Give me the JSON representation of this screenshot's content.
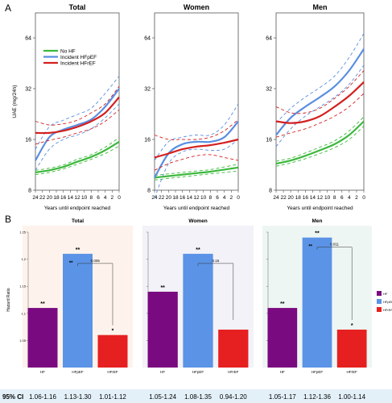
{
  "panel_a_letter": "A",
  "panel_b_letter": "B",
  "colors": {
    "no_hf": "#3cb83c",
    "hfpef": "#5a8ee0",
    "hfref": "#d42020",
    "hf_bar": "#7a0a80",
    "hfpef_bar": "#5b93e6",
    "hfref_bar": "#e62020",
    "bg_total": "#fdf3ec",
    "bg_women": "#f2f2f8",
    "bg_men": "#eef6f3",
    "ci_band": "#e3f0f8"
  },
  "ci_label": "95% CI",
  "chart_data": [
    {
      "type": "line",
      "title": "Total",
      "xlabel": "Years until endpoint reached",
      "ylabel": "UAE (mg/24h)",
      "y_scale": "log",
      "y_ticks": [
        8,
        16,
        32,
        64
      ],
      "ylim": [
        8,
        90
      ],
      "x_reversed": true,
      "x_ticks": [
        "24",
        "22",
        "20",
        "18",
        "16",
        "14",
        "12",
        "10",
        "8",
        "6",
        "4",
        "2",
        "0"
      ],
      "legend": {
        "position": "top-left",
        "entries": [
          "No HF",
          "Incident HFpEF",
          "Incident HFrEF"
        ]
      },
      "x": [
        24,
        20,
        16,
        12,
        8,
        4,
        0
      ],
      "series": [
        {
          "name": "No HF",
          "values": [
            10.2,
            10.5,
            11,
            11.8,
            12.6,
            13.8,
            15.5
          ],
          "lower": [
            9.9,
            10.2,
            10.7,
            11.4,
            12.2,
            13.2,
            14.6
          ],
          "upper": [
            10.5,
            10.8,
            11.3,
            12.2,
            13,
            14.4,
            16.4
          ]
        },
        {
          "name": "Incident HFpEF",
          "values": [
            12,
            16.5,
            18.3,
            19.5,
            21,
            25,
            32
          ],
          "lower": [
            10.5,
            14,
            16,
            17,
            18.5,
            21.5,
            26
          ],
          "upper": [
            14,
            19,
            20.8,
            22.5,
            24.5,
            30,
            38
          ]
        },
        {
          "name": "Incident HFrEF",
          "values": [
            17.5,
            17.5,
            18,
            19,
            20.5,
            23,
            28.5
          ],
          "lower": [
            15,
            15.8,
            16.5,
            17.5,
            18.5,
            20.5,
            24
          ],
          "upper": [
            20.5,
            19.5,
            19.8,
            20.8,
            23,
            26,
            33
          ]
        }
      ]
    },
    {
      "type": "line",
      "title": "Women",
      "xlabel": "Years until endpoint reached",
      "ylabel": "",
      "y_scale": "log",
      "y_ticks": [
        8,
        16,
        32,
        64
      ],
      "ylim": [
        8,
        90
      ],
      "x_reversed": true,
      "x_ticks": [
        "24",
        "22",
        "20",
        "18",
        "16",
        "14",
        "12",
        "10",
        "8",
        "6",
        "4",
        "2",
        "0"
      ],
      "x": [
        24,
        20,
        16,
        12,
        8,
        4,
        0
      ],
      "series": [
        {
          "name": "No HF",
          "values": [
            9.5,
            9.7,
            9.9,
            10.1,
            10.3,
            10.6,
            10.9
          ],
          "lower": [
            9.2,
            9.4,
            9.6,
            9.8,
            10,
            10.2,
            10.4
          ],
          "upper": [
            9.8,
            10,
            10.2,
            10.4,
            10.6,
            11,
            11.4
          ]
        },
        {
          "name": "Incident HFpEF",
          "values": [
            9.5,
            13.2,
            15,
            15.5,
            15.5,
            16.5,
            20.5
          ],
          "lower": [
            7.2,
            11.5,
            13.5,
            14,
            13.8,
            14,
            16
          ],
          "upper": [
            12,
            15.5,
            16.5,
            17,
            17,
            19.5,
            26
          ]
        },
        {
          "name": "Incident HFrEF",
          "values": [
            12.5,
            13.2,
            14,
            14.5,
            14.8,
            15.3,
            16
          ],
          "lower": [
            10.5,
            11.5,
            12.2,
            12.8,
            13,
            12.5,
            12
          ],
          "upper": [
            17,
            16,
            16,
            16,
            16.5,
            18,
            21
          ]
        }
      ]
    },
    {
      "type": "line",
      "title": "Men",
      "xlabel": "Years until endpoint reached",
      "ylabel": "",
      "y_scale": "log",
      "y_ticks": [
        8,
        16,
        32,
        64
      ],
      "ylim": [
        8,
        90
      ],
      "x_reversed": true,
      "x_ticks": [
        "24",
        "22",
        "20",
        "18",
        "16",
        "14",
        "12",
        "10",
        "8",
        "6",
        "4",
        "2",
        "0"
      ],
      "x": [
        24,
        20,
        16,
        12,
        8,
        4,
        0
      ],
      "series": [
        {
          "name": "No HF",
          "values": [
            11.5,
            12,
            12.8,
            13.8,
            15,
            17,
            20.5
          ],
          "lower": [
            11.1,
            11.6,
            12.3,
            13.2,
            14.3,
            16,
            19.2
          ],
          "upper": [
            11.9,
            12.4,
            13.3,
            14.4,
            15.7,
            18,
            21.8
          ]
        },
        {
          "name": "Incident HFpEF",
          "values": [
            17,
            21.5,
            25,
            28.5,
            33,
            41,
            55
          ],
          "lower": [
            14.5,
            18.5,
            22,
            25,
            28.5,
            34,
            44
          ],
          "upper": [
            20,
            24.5,
            28.5,
            32.5,
            38,
            49,
            68
          ]
        },
        {
          "name": "Incident HFrEF",
          "values": [
            20.5,
            20,
            20.5,
            22,
            25,
            29,
            35
          ],
          "lower": [
            16.5,
            17.5,
            18.5,
            20,
            22,
            25,
            30
          ],
          "upper": [
            25,
            23,
            23,
            24.5,
            28,
            33,
            41
          ]
        }
      ]
    },
    {
      "type": "bar",
      "title": "Total",
      "ylabel": "Hazard Ratio",
      "ylim": [
        1.0,
        1.25
      ],
      "y_ticks": [
        1.05,
        1.1,
        1.15,
        1.2,
        1.25
      ],
      "y_tick_labels": [
        "1.05",
        "1.1",
        "1.15",
        "1.2",
        "1.25"
      ],
      "categories": [
        "HF",
        "HFpEF",
        "HFrEF"
      ],
      "values": [
        1.11,
        1.21,
        1.06
      ],
      "significance": [
        "**",
        "**",
        "*"
      ],
      "bracket_p": "0.006",
      "bracket_sig": "**",
      "ci": [
        "1.06-1.16",
        "1.13-1.30",
        "1.01-1.12"
      ]
    },
    {
      "type": "bar",
      "title": "Women",
      "ylabel": "",
      "ylim": [
        1.0,
        1.25
      ],
      "y_ticks": [
        1.05,
        1.1,
        1.15,
        1.2,
        1.25
      ],
      "categories": [
        "HF",
        "HFpEF",
        "HFrEF"
      ],
      "values": [
        1.14,
        1.21,
        1.07
      ],
      "significance": [
        "**",
        "**",
        ""
      ],
      "bracket_p": "0.15",
      "bracket_sig": "",
      "ci": [
        "1.05-1.24",
        "1.08-1.35",
        "0.94-1.20"
      ]
    },
    {
      "type": "bar",
      "title": "Men",
      "ylabel": "",
      "ylim": [
        1.0,
        1.25
      ],
      "y_ticks": [
        1.05,
        1.1,
        1.15,
        1.2,
        1.25
      ],
      "categories": [
        "HF",
        "HFpEF",
        "HFrEF"
      ],
      "values": [
        1.11,
        1.24,
        1.07
      ],
      "significance": [
        "**",
        "**",
        "*"
      ],
      "bracket_p": "0.011",
      "bracket_sig": "**",
      "ci": [
        "1.05-1.17",
        "1.12-1.36",
        "1.00-1.14"
      ]
    }
  ],
  "bar_legend": [
    "HF",
    "HFpEF",
    "HFrEF"
  ]
}
